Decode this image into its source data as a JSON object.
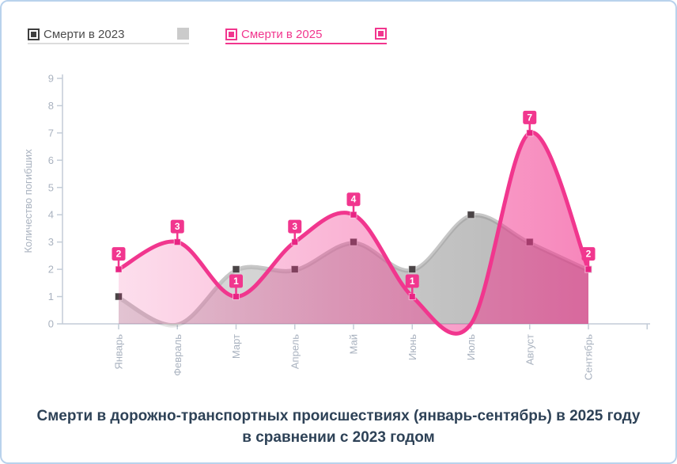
{
  "card": {
    "background": "#ffffff",
    "border_color": "#b9d2ec"
  },
  "legend": {
    "items": [
      {
        "label": "Смерти в 2023",
        "text_color": "#4c4c4c",
        "marker_color": "#3e3e3e",
        "underline_color": "#dcdcdc",
        "end_marker_color": "#cbcbcb",
        "end_marker_style": "solid"
      },
      {
        "label": "Смерти в 2025",
        "text_color": "#f1368e",
        "marker_color": "#f1368e",
        "underline_color": "#f1368e",
        "end_marker_color": "#f1368e",
        "end_marker_style": "outlined"
      }
    ]
  },
  "chart_data": {
    "type": "area",
    "smoothed": true,
    "categories": [
      "Январь",
      "Февраль",
      "Март",
      "Апрель",
      "Май",
      "Июнь",
      "Июль",
      "Август",
      "Сентябрь"
    ],
    "series": [
      {
        "name": "Смерти в 2023",
        "values": [
          1,
          0,
          2,
          2,
          3,
          2,
          4,
          3,
          2
        ],
        "line_color": "#c7c7c7",
        "bullet_color": "#4a4446",
        "fill_from": "rgba(140,140,140,0.28)",
        "fill_to": "rgba(110,110,110,0.52)",
        "point_labels": null
      },
      {
        "name": "Смерти в 2025",
        "values": [
          2,
          3,
          1,
          3,
          4,
          1,
          0,
          7,
          2
        ],
        "line_color": "#f1368e",
        "bullet_color": "#e82483",
        "fill_from": "rgba(241,54,142,0.16)",
        "fill_to": "rgba(241,54,142,0.60)",
        "point_labels": [
          "2",
          "3",
          "1",
          "3",
          "4",
          "1",
          "",
          "7",
          "2"
        ],
        "label_bg": "#f1368e",
        "label_text_color": "#ffffff"
      }
    ],
    "xlabel": "",
    "ylabel": "Количество погибших",
    "ylim": [
      0,
      9
    ],
    "y_ticks": [
      "0",
      "1",
      "2",
      "3",
      "4",
      "5",
      "6",
      "7",
      "8",
      "9"
    ],
    "grid": false,
    "legend_position": "top",
    "axis_color": "#c3ccd7",
    "tick_label_color": "#a9b2bf"
  },
  "title": {
    "line1": "Смерти в дорожно-транспортных происшествиях (январь-сентябрь) в 2025 году",
    "line2": "в сравнении с 2023 годом",
    "color": "#2e4257"
  }
}
